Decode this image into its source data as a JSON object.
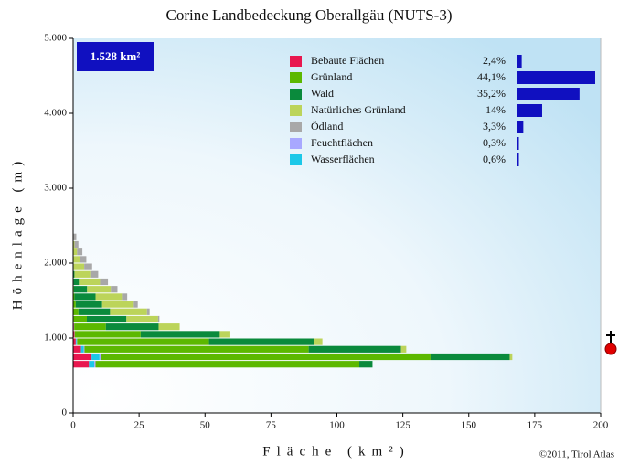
{
  "chart_data": {
    "type": "stacked-histogram",
    "title": "Corine Landbedeckung Oberallgäu (NUTS-3)",
    "area_label": "1.528 km²",
    "ylabel": "Höhenlage (m)",
    "xlabel": "Fläche (km²)",
    "copyright": "©2011, Tirol Atlas",
    "bins": [
      600,
      700,
      800,
      900,
      1000,
      1100,
      1200,
      1300,
      1400,
      1500,
      1600,
      1700,
      1800,
      1900,
      2000,
      2100,
      2200,
      2300,
      2400
    ],
    "xlim": [
      0,
      200
    ],
    "xticks": [
      0,
      25,
      50,
      75,
      100,
      125,
      150,
      175,
      200
    ],
    "ylim": [
      0,
      5000
    ],
    "yticks": [
      0,
      {
        "value": 1000,
        "label": "1.000"
      },
      {
        "value": 2000,
        "label": "2.000"
      },
      {
        "value": 3000,
        "label": "3.000"
      },
      {
        "value": 4000,
        "label": "4.000"
      },
      {
        "value": 5000,
        "label": "5.000"
      }
    ],
    "share_bar_color": "#1010c0",
    "series": [
      {
        "name": "Bebaute Flächen",
        "color": "#e8174f",
        "share": 2.4,
        "share_label": "2,4%",
        "values": [
          6,
          7,
          3,
          1,
          0.5,
          0.3,
          0.2,
          0,
          0,
          0,
          0,
          0,
          0,
          0,
          0,
          0,
          0,
          0
        ]
      },
      {
        "name": "Grünland",
        "color": "#5cb800",
        "share": 44.1,
        "share_label": "44,1%",
        "values": [
          100,
          125,
          85,
          50,
          25,
          12,
          5,
          2,
          1,
          0.5,
          0.3,
          0.2,
          0,
          0,
          0,
          0,
          0,
          0
        ]
      },
      {
        "name": "Wald",
        "color": "#0a8a3c",
        "share": 35.2,
        "share_label": "35,2%",
        "values": [
          5,
          30,
          35,
          40,
          30,
          20,
          15,
          12,
          10,
          8,
          5,
          2,
          0.5,
          0.2,
          0,
          0,
          0,
          0
        ]
      },
      {
        "name": "Natürliches Grünland",
        "color": "#bcd45a",
        "share": 14,
        "share_label": "14%",
        "values": [
          0,
          1,
          2,
          3,
          4,
          8,
          12,
          14,
          12,
          10,
          9,
          8,
          6,
          4,
          2.5,
          1.5,
          0.5,
          0.2
        ]
      },
      {
        "name": "Ödland",
        "color": "#a8a8a8",
        "share": 3.3,
        "share_label": "3,3%",
        "values": [
          0,
          0,
          0,
          0,
          0,
          0,
          0.5,
          1,
          1.5,
          2,
          2.5,
          3,
          3,
          3,
          2.5,
          2,
          1.5,
          1
        ]
      },
      {
        "name": "Feuchtflächen",
        "color": "#a8a8ff",
        "share": 0.3,
        "share_label": "0,3%",
        "values": [
          0.5,
          0.5,
          0.3,
          0.2,
          0.1,
          0.1,
          0,
          0,
          0,
          0,
          0,
          0,
          0,
          0,
          0,
          0,
          0,
          0
        ]
      },
      {
        "name": "Wasserflächen",
        "color": "#1cc8e8",
        "share": 0.6,
        "share_label": "0,6%",
        "values": [
          2,
          3,
          1,
          0.3,
          0,
          0,
          0,
          0,
          0,
          0,
          0,
          0,
          0,
          0,
          0,
          0,
          0,
          0
        ]
      }
    ]
  }
}
